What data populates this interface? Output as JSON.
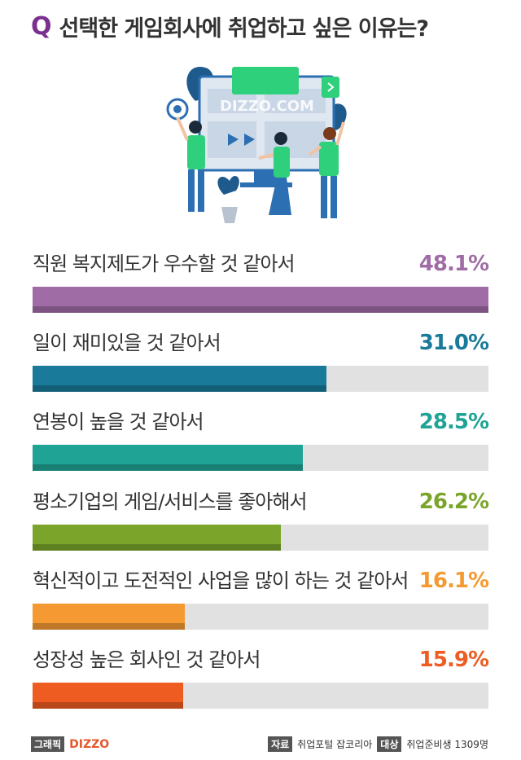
{
  "question": {
    "mark": "Q",
    "text": "선택한 게임회사에 취업하고 싶은 이유는?"
  },
  "illustration": {
    "watermark": "DIZZO.COM"
  },
  "chart_data": {
    "type": "bar",
    "orientation": "horizontal",
    "xlim": [
      0,
      48.1
    ],
    "categories": [
      "직원 복지제도가 우수할 것 같아서",
      "일이 재미있을 것 같아서",
      "연봉이 높을 것 같아서",
      "평소기업의 게임/서비스를 좋아해서",
      "혁신적이고 도전적인 사업을 많이 하는 것 같아서",
      "성장성 높은 회사인 것 같아서"
    ],
    "values": [
      48.1,
      31.0,
      28.5,
      26.2,
      16.1,
      15.9
    ],
    "value_labels": [
      "48.1%",
      "31.0%",
      "28.5%",
      "26.2%",
      "16.1%",
      "15.9%"
    ],
    "colors": [
      "#a06ca6",
      "#1a7a9a",
      "#1fa394",
      "#7aa52a",
      "#f59a32",
      "#ee5c22"
    ]
  },
  "footer": {
    "graphic_tag": "그래픽",
    "brand": "DIZZO",
    "source_tag": "자료",
    "source": "취업포털 잡코리아",
    "target_tag": "대상",
    "target": "취업준비생 1309명"
  }
}
